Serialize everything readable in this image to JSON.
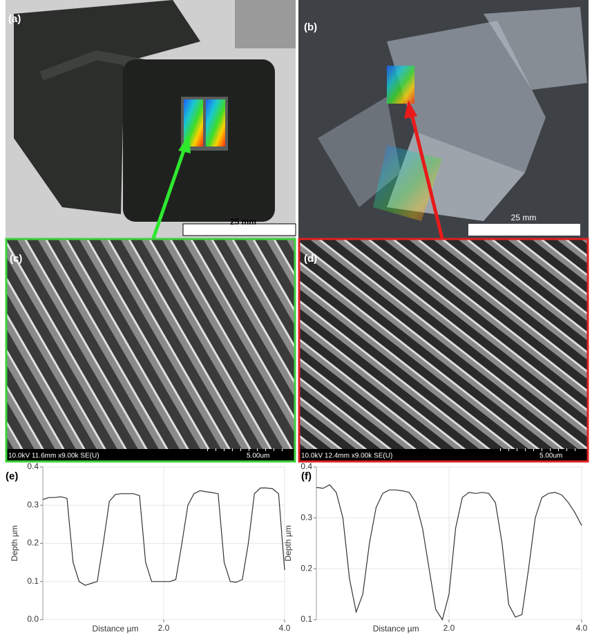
{
  "panels": {
    "a": {
      "label": "(a)",
      "scale_bar": "25 mm"
    },
    "b": {
      "label": "(b)",
      "scale_bar": "25 mm"
    },
    "c": {
      "label": "(c)",
      "info": "10.0kV 11.6mm x9.00k SE(U)",
      "scale": "5.00um"
    },
    "d": {
      "label": "(d)",
      "info": "10.0kV 12.4mm x9.00k SE(U)",
      "scale": "5.00um"
    }
  },
  "chart_data": [
    {
      "type": "line",
      "label": "(e)",
      "xlabel": "Distance µm",
      "ylabel": "Depth µm",
      "x": [
        0.0,
        0.1,
        0.2,
        0.3,
        0.4,
        0.5,
        0.6,
        0.7,
        0.8,
        0.9,
        1.0,
        1.1,
        1.2,
        1.3,
        1.4,
        1.5,
        1.6,
        1.7,
        1.8,
        1.9,
        2.0,
        2.1,
        2.2,
        2.3,
        2.4,
        2.5,
        2.6,
        2.7,
        2.8,
        2.9,
        3.0,
        3.1,
        3.2,
        3.3,
        3.4,
        3.5,
        3.6,
        3.7,
        3.8,
        3.9,
        4.0
      ],
      "series": [
        {
          "color": "#333333",
          "values": [
            0.315,
            0.32,
            0.32,
            0.322,
            0.318,
            0.15,
            0.1,
            0.09,
            0.095,
            0.1,
            0.2,
            0.31,
            0.328,
            0.33,
            0.33,
            0.33,
            0.325,
            0.15,
            0.1,
            0.1,
            0.1,
            0.1,
            0.105,
            0.2,
            0.3,
            0.33,
            0.338,
            0.335,
            0.333,
            0.33,
            0.15,
            0.1,
            0.098,
            0.105,
            0.2,
            0.33,
            0.345,
            0.345,
            0.343,
            0.33,
            0.13
          ]
        }
      ],
      "xlim": [
        0,
        4
      ],
      "ylim": [
        0,
        0.4
      ],
      "xticks": [
        {
          "value": 2,
          "label": "2.0"
        },
        {
          "value": 4,
          "label": "4.0"
        }
      ],
      "yticks": [
        {
          "value": 0,
          "label": "0.0"
        },
        0.1,
        0.2,
        0.3,
        0.4
      ],
      "grid": true
    },
    {
      "type": "line",
      "label": "(f)",
      "xlabel": "Distance µm",
      "ylabel": "Depth µm",
      "x": [
        0.0,
        0.1,
        0.2,
        0.3,
        0.4,
        0.5,
        0.6,
        0.7,
        0.8,
        0.9,
        1.0,
        1.1,
        1.2,
        1.3,
        1.4,
        1.5,
        1.6,
        1.7,
        1.8,
        1.9,
        2.0,
        2.1,
        2.2,
        2.3,
        2.4,
        2.5,
        2.6,
        2.7,
        2.8,
        2.9,
        3.0,
        3.1,
        3.2,
        3.3,
        3.4,
        3.5,
        3.6,
        3.7,
        3.8,
        3.9,
        4.0
      ],
      "series": [
        {
          "color": "#333333",
          "values": [
            0.36,
            0.358,
            0.365,
            0.35,
            0.3,
            0.18,
            0.115,
            0.15,
            0.25,
            0.32,
            0.348,
            0.355,
            0.355,
            0.353,
            0.35,
            0.33,
            0.28,
            0.2,
            0.12,
            0.1,
            0.15,
            0.28,
            0.34,
            0.35,
            0.348,
            0.35,
            0.348,
            0.33,
            0.25,
            0.13,
            0.105,
            0.11,
            0.2,
            0.3,
            0.34,
            0.348,
            0.35,
            0.345,
            0.33,
            0.31,
            0.285
          ]
        }
      ],
      "xlim": [
        0,
        4
      ],
      "ylim": [
        0.1,
        0.4
      ],
      "xticks": [
        {
          "value": 2,
          "label": "2.0"
        },
        {
          "value": 4,
          "label": "4.0"
        }
      ],
      "yticks": [
        0.1,
        0.2,
        0.3,
        0.4
      ],
      "grid": true
    }
  ]
}
